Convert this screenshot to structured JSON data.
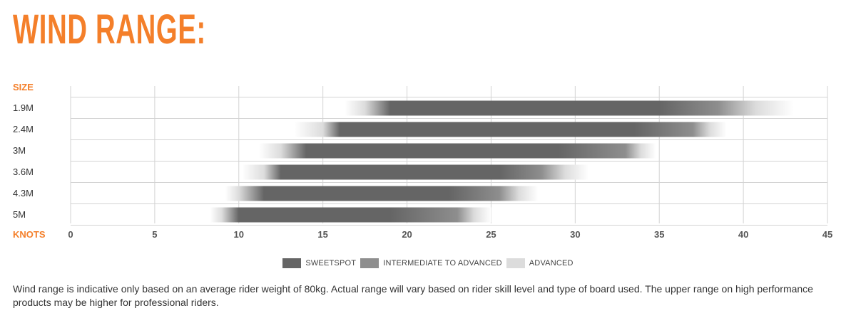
{
  "title": "WIND RANGE:",
  "colors": {
    "accent": "#f47f2a",
    "sweetspot": "#656565",
    "intermediate": "#8e8e8e",
    "advanced": "#dcdcdc",
    "grid": "#d3d3d3",
    "tick_text": "#555555"
  },
  "chart_data": {
    "type": "bar",
    "orientation": "horizontal",
    "title": "WIND RANGE:",
    "ylabel": "SIZE",
    "xlabel": "KNOTS",
    "xlim": [
      0,
      45
    ],
    "xticks": [
      0,
      5,
      10,
      15,
      20,
      25,
      30,
      35,
      40,
      45
    ],
    "grid": true,
    "legend_position": "bottom-center",
    "categories": [
      "1.9M",
      "2.4M",
      "3M",
      "3.6M",
      "4.3M",
      "5M"
    ],
    "series": [
      {
        "name": "SWEETSPOT",
        "ranges": [
          [
            19,
            35
          ],
          [
            16,
            33.5
          ],
          [
            14,
            29
          ],
          [
            12.5,
            25.5
          ],
          [
            11.5,
            22.5
          ],
          [
            10,
            19
          ]
        ]
      },
      {
        "name": "INTERMEDIATE TO ADVANCED",
        "ranges": [
          [
            17.5,
            38.5
          ],
          [
            15,
            37
          ],
          [
            12.5,
            33
          ],
          [
            11.5,
            28
          ],
          [
            10,
            25.5
          ],
          [
            9,
            23
          ]
        ]
      },
      {
        "name": "ADVANCED",
        "ranges": [
          [
            16.3,
            43
          ],
          [
            13.3,
            39
          ],
          [
            11.2,
            34.8
          ],
          [
            10.2,
            30.8
          ],
          [
            9.2,
            27.8
          ],
          [
            8.3,
            25
          ]
        ]
      }
    ]
  },
  "legend": [
    {
      "label": "SWEETSPOT",
      "color": "#656565"
    },
    {
      "label": "INTERMEDIATE TO ADVANCED",
      "color": "#8e8e8e"
    },
    {
      "label": "ADVANCED",
      "color": "#dcdcdc"
    }
  ],
  "note": "Wind range is indicative only based on an average rider weight of 80kg. Actual range will vary based on rider skill level and type of board used. The upper range on high performance products may be higher for professional riders."
}
